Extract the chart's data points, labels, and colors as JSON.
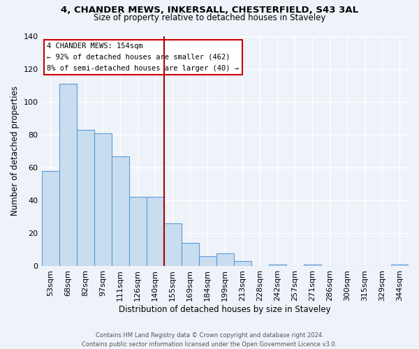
{
  "title_line1": "4, CHANDER MEWS, INKERSALL, CHESTERFIELD, S43 3AL",
  "title_line2": "Size of property relative to detached houses in Staveley",
  "xlabel": "Distribution of detached houses by size in Staveley",
  "ylabel": "Number of detached properties",
  "categories": [
    "53sqm",
    "68sqm",
    "82sqm",
    "97sqm",
    "111sqm",
    "126sqm",
    "140sqm",
    "155sqm",
    "169sqm",
    "184sqm",
    "199sqm",
    "213sqm",
    "228sqm",
    "242sqm",
    "257sqm",
    "271sqm",
    "286sqm",
    "300sqm",
    "315sqm",
    "329sqm",
    "344sqm"
  ],
  "values": [
    58,
    111,
    83,
    81,
    67,
    42,
    42,
    26,
    14,
    6,
    8,
    3,
    0,
    1,
    0,
    1,
    0,
    0,
    0,
    0,
    1
  ],
  "bar_color": "#c9ddf0",
  "bar_edge_color": "#5b9bd5",
  "vline_color": "#aa0000",
  "footer_line1": "Contains HM Land Registry data © Crown copyright and database right 2024.",
  "footer_line2": "Contains public sector information licensed under the Open Government Licence v3.0.",
  "bg_color": "#eef2f9",
  "grid_color": "#ffffff",
  "ylim": [
    0,
    140
  ],
  "annotation_text_line1": "4 CHANDER MEWS: 154sqm",
  "annotation_text_line2": "← 92% of detached houses are smaller (462)",
  "annotation_text_line3": "8% of semi-detached houses are larger (40) →"
}
